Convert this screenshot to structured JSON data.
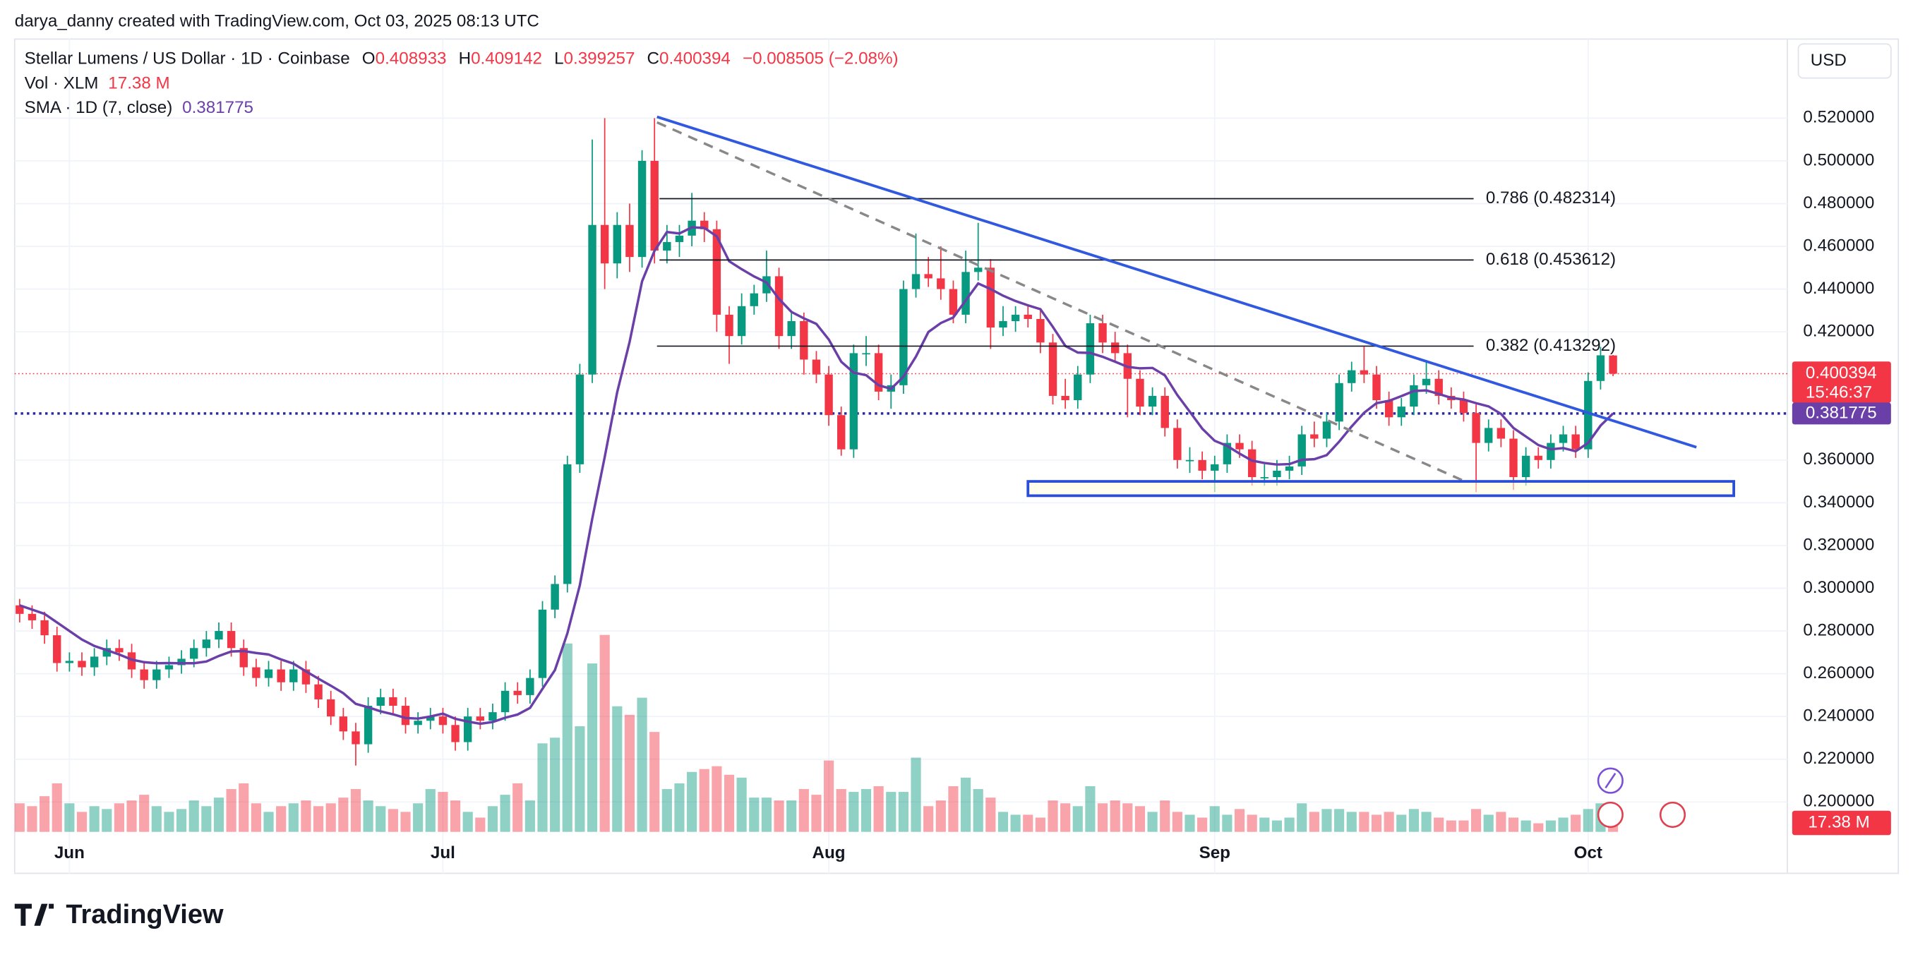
{
  "header": {
    "credit": "darya_danny created with TradingView.com, Oct 03, 2025 08:13 UTC",
    "brand": "TradingView"
  },
  "chart_data": {
    "type": "candlestick",
    "title": "Stellar Lumens / US Dollar · 1D · Coinbase",
    "ohlc_labels": [
      "O",
      "H",
      "L",
      "C"
    ],
    "change_label": "−0.008505 (−2.08%)",
    "currency": "USD",
    "countdown": "15:46:37",
    "up_color": "#089981",
    "down_color": "#f23645",
    "candles": [
      [
        0.292,
        0.295,
        0.284,
        0.288
      ],
      [
        0.288,
        0.292,
        0.281,
        0.285
      ],
      [
        0.285,
        0.289,
        0.274,
        0.278
      ],
      [
        0.278,
        0.282,
        0.261,
        0.265
      ],
      [
        0.265,
        0.27,
        0.261,
        0.266
      ],
      [
        0.266,
        0.27,
        0.259,
        0.263
      ],
      [
        0.263,
        0.272,
        0.259,
        0.268
      ],
      [
        0.268,
        0.276,
        0.264,
        0.272
      ],
      [
        0.272,
        0.276,
        0.266,
        0.27
      ],
      [
        0.27,
        0.274,
        0.258,
        0.262
      ],
      [
        0.262,
        0.266,
        0.253,
        0.257
      ],
      [
        0.257,
        0.266,
        0.253,
        0.262
      ],
      [
        0.262,
        0.268,
        0.258,
        0.264
      ],
      [
        0.264,
        0.271,
        0.26,
        0.267
      ],
      [
        0.267,
        0.276,
        0.263,
        0.272
      ],
      [
        0.272,
        0.28,
        0.268,
        0.276
      ],
      [
        0.276,
        0.284,
        0.272,
        0.28
      ],
      [
        0.28,
        0.284,
        0.268,
        0.272
      ],
      [
        0.272,
        0.276,
        0.259,
        0.263
      ],
      [
        0.263,
        0.267,
        0.254,
        0.258
      ],
      [
        0.258,
        0.266,
        0.254,
        0.262
      ],
      [
        0.262,
        0.266,
        0.252,
        0.256
      ],
      [
        0.256,
        0.266,
        0.252,
        0.262
      ],
      [
        0.262,
        0.266,
        0.251,
        0.255
      ],
      [
        0.255,
        0.259,
        0.244,
        0.248
      ],
      [
        0.248,
        0.252,
        0.236,
        0.24
      ],
      [
        0.24,
        0.244,
        0.229,
        0.233
      ],
      [
        0.233,
        0.237,
        0.217,
        0.227
      ],
      [
        0.227,
        0.249,
        0.223,
        0.245
      ],
      [
        0.245,
        0.253,
        0.241,
        0.249
      ],
      [
        0.249,
        0.253,
        0.241,
        0.245
      ],
      [
        0.245,
        0.249,
        0.232,
        0.236
      ],
      [
        0.236,
        0.242,
        0.232,
        0.238
      ],
      [
        0.238,
        0.244,
        0.234,
        0.24
      ],
      [
        0.24,
        0.244,
        0.232,
        0.236
      ],
      [
        0.236,
        0.24,
        0.224,
        0.228
      ],
      [
        0.228,
        0.244,
        0.224,
        0.24
      ],
      [
        0.24,
        0.244,
        0.234,
        0.238
      ],
      [
        0.238,
        0.246,
        0.234,
        0.242
      ],
      [
        0.242,
        0.256,
        0.238,
        0.252
      ],
      [
        0.252,
        0.256,
        0.246,
        0.25
      ],
      [
        0.25,
        0.262,
        0.246,
        0.258
      ],
      [
        0.258,
        0.294,
        0.254,
        0.29
      ],
      [
        0.29,
        0.306,
        0.286,
        0.302
      ],
      [
        0.302,
        0.362,
        0.298,
        0.358
      ],
      [
        0.358,
        0.405,
        0.354,
        0.4
      ],
      [
        0.4,
        0.51,
        0.396,
        0.47
      ],
      [
        0.47,
        0.52,
        0.44,
        0.452
      ],
      [
        0.452,
        0.476,
        0.445,
        0.47
      ],
      [
        0.47,
        0.48,
        0.448,
        0.455
      ],
      [
        0.455,
        0.505,
        0.45,
        0.5
      ],
      [
        0.5,
        0.52,
        0.452,
        0.458
      ],
      [
        0.458,
        0.47,
        0.452,
        0.462
      ],
      [
        0.462,
        0.47,
        0.455,
        0.465
      ],
      [
        0.465,
        0.485,
        0.46,
        0.472
      ],
      [
        0.472,
        0.476,
        0.462,
        0.468
      ],
      [
        0.468,
        0.472,
        0.42,
        0.428
      ],
      [
        0.428,
        0.432,
        0.405,
        0.418
      ],
      [
        0.418,
        0.438,
        0.414,
        0.432
      ],
      [
        0.432,
        0.442,
        0.428,
        0.438
      ],
      [
        0.438,
        0.458,
        0.434,
        0.446
      ],
      [
        0.446,
        0.45,
        0.412,
        0.418
      ],
      [
        0.418,
        0.43,
        0.412,
        0.425
      ],
      [
        0.425,
        0.429,
        0.4,
        0.407
      ],
      [
        0.407,
        0.411,
        0.396,
        0.4
      ],
      [
        0.4,
        0.404,
        0.376,
        0.381
      ],
      [
        0.381,
        0.385,
        0.362,
        0.365
      ],
      [
        0.365,
        0.414,
        0.361,
        0.41
      ],
      [
        0.41,
        0.418,
        0.404,
        0.41
      ],
      [
        0.41,
        0.414,
        0.388,
        0.392
      ],
      [
        0.392,
        0.4,
        0.384,
        0.395
      ],
      [
        0.395,
        0.444,
        0.391,
        0.44
      ],
      [
        0.44,
        0.466,
        0.436,
        0.447
      ],
      [
        0.447,
        0.455,
        0.441,
        0.445
      ],
      [
        0.445,
        0.46,
        0.435,
        0.44
      ],
      [
        0.44,
        0.444,
        0.424,
        0.428
      ],
      [
        0.428,
        0.458,
        0.424,
        0.448
      ],
      [
        0.448,
        0.471,
        0.444,
        0.45
      ],
      [
        0.45,
        0.454,
        0.412,
        0.422
      ],
      [
        0.422,
        0.432,
        0.418,
        0.425
      ],
      [
        0.425,
        0.432,
        0.42,
        0.428
      ],
      [
        0.428,
        0.432,
        0.422,
        0.426
      ],
      [
        0.426,
        0.43,
        0.41,
        0.415
      ],
      [
        0.415,
        0.419,
        0.386,
        0.39
      ],
      [
        0.39,
        0.398,
        0.384,
        0.388
      ],
      [
        0.388,
        0.404,
        0.384,
        0.4
      ],
      [
        0.4,
        0.428,
        0.396,
        0.424
      ],
      [
        0.424,
        0.428,
        0.41,
        0.415
      ],
      [
        0.415,
        0.42,
        0.406,
        0.41
      ],
      [
        0.41,
        0.414,
        0.38,
        0.398
      ],
      [
        0.398,
        0.402,
        0.381,
        0.385
      ],
      [
        0.385,
        0.394,
        0.381,
        0.39
      ],
      [
        0.39,
        0.394,
        0.371,
        0.375
      ],
      [
        0.375,
        0.379,
        0.356,
        0.36
      ],
      [
        0.36,
        0.366,
        0.354,
        0.36
      ],
      [
        0.36,
        0.364,
        0.351,
        0.355
      ],
      [
        0.355,
        0.362,
        0.345,
        0.358
      ],
      [
        0.358,
        0.372,
        0.354,
        0.368
      ],
      [
        0.368,
        0.372,
        0.361,
        0.365
      ],
      [
        0.365,
        0.369,
        0.348,
        0.352
      ],
      [
        0.352,
        0.358,
        0.348,
        0.352
      ],
      [
        0.352,
        0.36,
        0.348,
        0.355
      ],
      [
        0.355,
        0.362,
        0.351,
        0.357
      ],
      [
        0.357,
        0.376,
        0.353,
        0.372
      ],
      [
        0.372,
        0.378,
        0.366,
        0.37
      ],
      [
        0.37,
        0.382,
        0.366,
        0.378
      ],
      [
        0.378,
        0.4,
        0.374,
        0.396
      ],
      [
        0.396,
        0.406,
        0.392,
        0.402
      ],
      [
        0.402,
        0.413,
        0.396,
        0.4
      ],
      [
        0.4,
        0.404,
        0.384,
        0.388
      ],
      [
        0.388,
        0.392,
        0.376,
        0.38
      ],
      [
        0.38,
        0.389,
        0.376,
        0.385
      ],
      [
        0.385,
        0.4,
        0.381,
        0.395
      ],
      [
        0.395,
        0.406,
        0.391,
        0.398
      ],
      [
        0.398,
        0.402,
        0.386,
        0.39
      ],
      [
        0.39,
        0.394,
        0.384,
        0.388
      ],
      [
        0.388,
        0.392,
        0.378,
        0.382
      ],
      [
        0.382,
        0.386,
        0.345,
        0.368
      ],
      [
        0.368,
        0.379,
        0.364,
        0.375
      ],
      [
        0.375,
        0.379,
        0.366,
        0.37
      ],
      [
        0.37,
        0.374,
        0.346,
        0.352
      ],
      [
        0.352,
        0.366,
        0.348,
        0.362
      ],
      [
        0.362,
        0.366,
        0.356,
        0.36
      ],
      [
        0.36,
        0.372,
        0.356,
        0.368
      ],
      [
        0.368,
        0.376,
        0.364,
        0.372
      ],
      [
        0.372,
        0.376,
        0.361,
        0.365
      ],
      [
        0.365,
        0.401,
        0.361,
        0.397
      ],
      [
        0.397,
        0.413,
        0.393,
        0.409
      ],
      [
        0.408933,
        0.409142,
        0.399257,
        0.400394
      ]
    ],
    "volume": {
      "name": "Vol · XLM",
      "value_label": "17.38 M",
      "vlim": [
        0,
        500
      ],
      "values": [
        20,
        18,
        25,
        34,
        20,
        14,
        18,
        16,
        20,
        22,
        26,
        18,
        14,
        16,
        22,
        18,
        24,
        30,
        34,
        20,
        14,
        18,
        20,
        22,
        18,
        20,
        24,
        30,
        22,
        18,
        16,
        14,
        20,
        30,
        28,
        22,
        14,
        10,
        18,
        26,
        34,
        22,
        62,
        66,
        132,
        74,
        118,
        138,
        88,
        82,
        94,
        70,
        30,
        34,
        42,
        44,
        46,
        40,
        38,
        24,
        24,
        22,
        22,
        30,
        26,
        50,
        30,
        28,
        30,
        32,
        28,
        28,
        52,
        18,
        22,
        32,
        38,
        30,
        24,
        14,
        12,
        12,
        10,
        22,
        20,
        18,
        32,
        20,
        22,
        20,
        18,
        14,
        22,
        14,
        12,
        10,
        18,
        12,
        16,
        12,
        10,
        8,
        10,
        20,
        14,
        16,
        16,
        14,
        14,
        12,
        14,
        12,
        16,
        14,
        10,
        8,
        8,
        16,
        12,
        14,
        10,
        8,
        6,
        8,
        10,
        12,
        16,
        20,
        17.38
      ]
    },
    "sma": {
      "name": "SMA · 1D (7, close)",
      "color": "#6b3fa8",
      "values": [
        0.292,
        0.29,
        0.288,
        0.284,
        0.28,
        0.276,
        0.273,
        0.271,
        0.269,
        0.2666,
        0.2654,
        0.2649,
        0.265,
        0.2649,
        0.2649,
        0.2657,
        0.2683,
        0.2704,
        0.2706,
        0.2697,
        0.269,
        0.2667,
        0.2647,
        0.2611,
        0.2577,
        0.2544,
        0.2509,
        0.2459,
        0.2443,
        0.2424,
        0.241,
        0.2393,
        0.239,
        0.24,
        0.2413,
        0.2389,
        0.2376,
        0.2366,
        0.2374,
        0.2394,
        0.2409,
        0.244,
        0.2529,
        0.2617,
        0.2789,
        0.3014,
        0.3326,
        0.3614,
        0.3917,
        0.4153,
        0.4436,
        0.4579,
        0.4667,
        0.466,
        0.4689,
        0.4686,
        0.4647,
        0.453,
        0.4493,
        0.4459,
        0.4431,
        0.4354,
        0.4293,
        0.4263,
        0.4237,
        0.4164,
        0.406,
        0.4009,
        0.3997,
        0.395,
        0.3933,
        0.399,
        0.4084,
        0.4199,
        0.4241,
        0.4267,
        0.4347,
        0.4426,
        0.44,
        0.4369,
        0.4344,
        0.4324,
        0.4306,
        0.4223,
        0.4134,
        0.4103,
        0.4101,
        0.4083,
        0.406,
        0.4036,
        0.4029,
        0.4031,
        0.3996,
        0.3904,
        0.3826,
        0.3747,
        0.369,
        0.3666,
        0.363,
        0.3597,
        0.3586,
        0.3579,
        0.3581,
        0.3601,
        0.3604,
        0.3623,
        0.3686,
        0.3757,
        0.3821,
        0.3866,
        0.3877,
        0.3899,
        0.3923,
        0.3926,
        0.3909,
        0.3891,
        0.3883,
        0.3866,
        0.3851,
        0.3816,
        0.375,
        0.371,
        0.367,
        0.365,
        0.3656,
        0.3641,
        0.368,
        0.3761,
        0.381775
      ]
    },
    "xlim": [
      -0.4,
      142
    ],
    "ylim": [
      0.186,
      0.557
    ],
    "xticks": [
      {
        "value": 4,
        "label": "Jun"
      },
      {
        "value": 34,
        "label": "Jul"
      },
      {
        "value": 65,
        "label": "Aug"
      },
      {
        "value": 96,
        "label": "Sep"
      },
      {
        "value": 126,
        "label": "Oct"
      }
    ],
    "yticks": [
      {
        "value": 0.52,
        "label": "0.520000"
      },
      {
        "value": 0.5,
        "label": "0.500000"
      },
      {
        "value": 0.48,
        "label": "0.480000"
      },
      {
        "value": 0.46,
        "label": "0.460000"
      },
      {
        "value": 0.44,
        "label": "0.440000"
      },
      {
        "value": 0.42,
        "label": "0.420000"
      },
      {
        "value": 0.36,
        "label": "0.360000"
      },
      {
        "value": 0.34,
        "label": "0.340000"
      },
      {
        "value": 0.32,
        "label": "0.320000"
      },
      {
        "value": 0.3,
        "label": "0.300000"
      },
      {
        "value": 0.28,
        "label": "0.280000"
      },
      {
        "value": 0.26,
        "label": "0.260000"
      },
      {
        "value": 0.24,
        "label": "0.240000"
      },
      {
        "value": 0.22,
        "label": "0.220000"
      },
      {
        "value": 0.2,
        "label": "0.200000"
      }
    ],
    "grid": true,
    "drawings": {
      "trendline": {
        "x": [
          51.2,
          134.7
        ],
        "y": [
          0.5206,
          0.366
        ],
        "color": "#3059e0"
      },
      "dashed": {
        "x": [
          51.2,
          116.1
        ],
        "y": [
          0.518,
          0.35
        ],
        "color": "#888888"
      },
      "fib": [
        {
          "label": "0.786 (0.482314)",
          "value": 0.482314,
          "x": [
            51.4,
            116.8
          ]
        },
        {
          "label": "0.618 (0.453612)",
          "value": 0.453612,
          "x": [
            51.4,
            116.8
          ]
        },
        {
          "label": "0.382 (0.413292)",
          "value": 0.413292,
          "x": [
            51.2,
            116.8
          ]
        }
      ],
      "box": {
        "x": [
          81,
          137.7
        ],
        "y": [
          0.3433,
          0.35
        ],
        "color": "#2a4fd6"
      }
    }
  }
}
